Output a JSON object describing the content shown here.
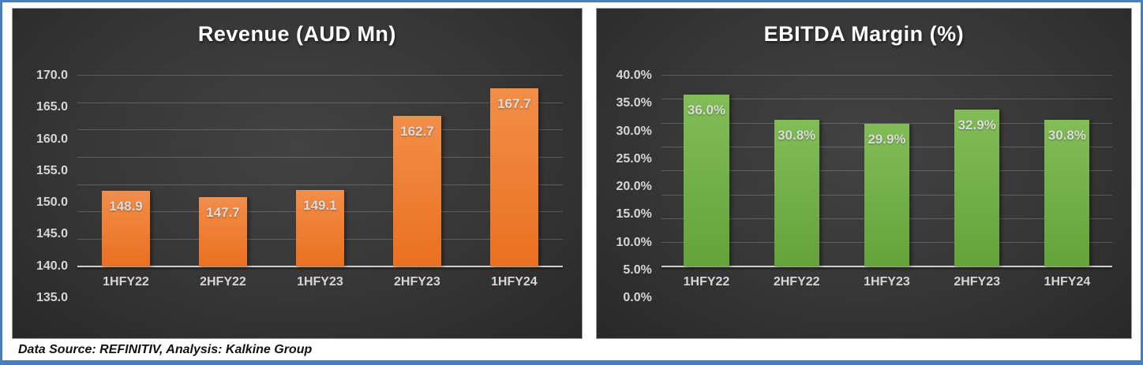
{
  "page": {
    "border_color": "#4a7ebb",
    "panel_background": "#383838",
    "label_color": "#d6d6d6",
    "footer": "Data Source: REFINITIV, Analysis: Kalkine Group"
  },
  "chart_data": [
    {
      "type": "bar",
      "title": "Revenue (AUD Mn)",
      "categories": [
        "1HFY22",
        "2HFY22",
        "1HFY23",
        "2HFY23",
        "1HFY24"
      ],
      "values": [
        148.9,
        147.7,
        149.1,
        162.7,
        167.7
      ],
      "value_labels": [
        "148.9",
        "147.7",
        "149.1",
        "162.7",
        "167.7"
      ],
      "xlabel": "",
      "ylabel": "",
      "ylim": [
        135,
        170
      ],
      "ytick_step": 5,
      "yticks": [
        "170.0",
        "165.0",
        "160.0",
        "155.0",
        "150.0",
        "145.0",
        "140.0",
        "135.0"
      ],
      "grid": true,
      "legend_position": "none",
      "bar_color_top": "#f28e49",
      "bar_color_bottom": "#ea701f"
    },
    {
      "type": "bar",
      "title": "EBITDA Margin (%)",
      "categories": [
        "1HFY22",
        "2HFY22",
        "1HFY23",
        "2HFY23",
        "1HFY24"
      ],
      "values": [
        36.0,
        30.8,
        29.9,
        32.9,
        30.8
      ],
      "value_labels": [
        "36.0%",
        "30.8%",
        "29.9%",
        "32.9%",
        "30.8%"
      ],
      "xlabel": "",
      "ylabel": "",
      "ylim": [
        0,
        40
      ],
      "ytick_step": 5,
      "yticks": [
        "40.0%",
        "35.0%",
        "30.0%",
        "25.0%",
        "20.0%",
        "15.0%",
        "10.0%",
        "5.0%",
        "0.0%"
      ],
      "grid": true,
      "legend_position": "none",
      "bar_color_top": "#82bd58",
      "bar_color_bottom": "#65a23a"
    }
  ]
}
